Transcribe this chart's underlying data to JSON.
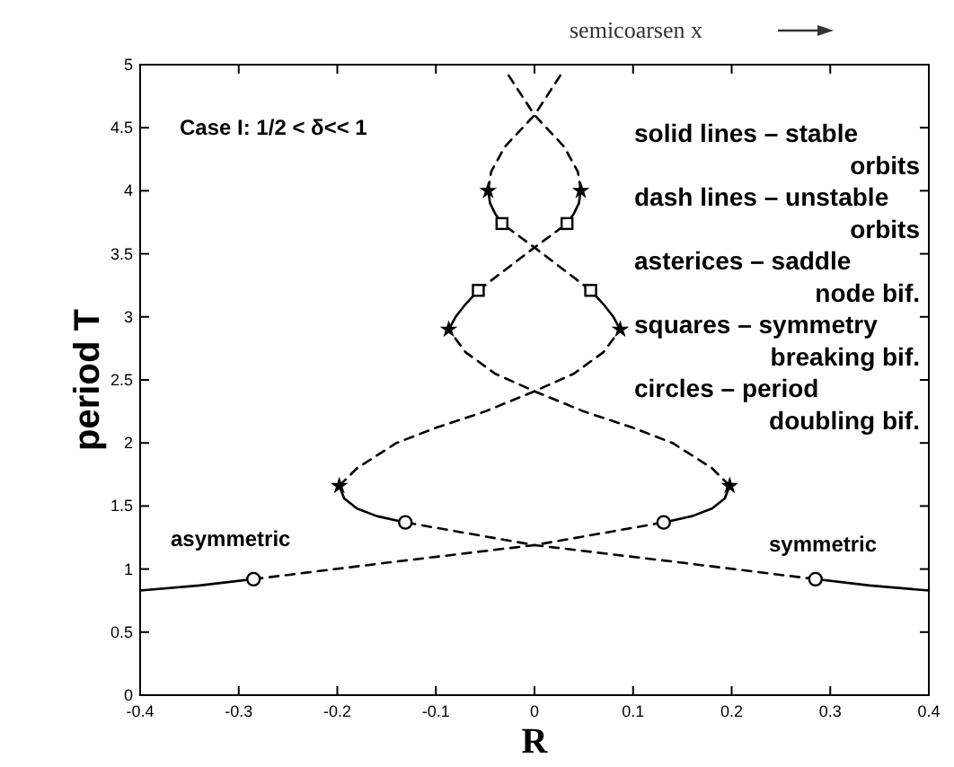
{
  "chart_data": {
    "type": "line",
    "xlabel": "R",
    "ylabel": "period T",
    "xlim": [
      -0.4,
      0.4
    ],
    "ylim": [
      0,
      5
    ],
    "xticks": [
      -0.4,
      -0.3,
      -0.2,
      -0.1,
      0,
      0.1,
      0.2,
      0.3,
      0.4
    ],
    "yticks": [
      0,
      0.5,
      1,
      1.5,
      2,
      2.5,
      3,
      3.5,
      4,
      4.5,
      5
    ],
    "grid": false,
    "annotations": [
      "semicoarsen x",
      "Case I: 1/2 < δ<< 1",
      "solid lines – stable\norbits",
      "dash lines – unstable\norbits",
      "asterices – saddle\nnode bif.",
      "squares – symmetry\nbreaking bif.",
      "circles – period\ndoubling bif.",
      "asymmetric",
      "symmetric"
    ],
    "series": [
      {
        "type": "line",
        "line_style": "solid",
        "color": "#000000",
        "x": [
          -0.4,
          -0.34,
          -0.285
        ],
        "values": [
          0.83,
          0.87,
          0.92
        ]
      },
      {
        "type": "line",
        "line_style": "dashed",
        "color": "#000000",
        "x": [
          -0.285,
          -0.15,
          0,
          0.131
        ],
        "values": [
          0.92,
          1.05,
          1.19,
          1.37
        ]
      },
      {
        "type": "line",
        "line_style": "solid",
        "color": "#000000",
        "x": [
          0.131,
          0.16,
          0.18,
          0.193,
          0.198
        ],
        "values": [
          1.37,
          1.42,
          1.48,
          1.56,
          1.66
        ]
      },
      {
        "type": "line",
        "line_style": "dashed",
        "color": "#000000",
        "x": [
          0.198,
          0.18,
          0.14,
          0.1,
          0.05,
          0,
          -0.04,
          -0.07,
          -0.087
        ],
        "values": [
          1.66,
          1.8,
          2.0,
          2.12,
          2.25,
          2.41,
          2.55,
          2.72,
          2.9
        ]
      },
      {
        "type": "line",
        "line_style": "solid",
        "color": "#000000",
        "x": [
          -0.087,
          -0.08,
          -0.07,
          -0.057
        ],
        "values": [
          2.9,
          3.0,
          3.1,
          3.21
        ]
      },
      {
        "type": "line",
        "line_style": "dashed",
        "color": "#000000",
        "x": [
          -0.057,
          0,
          0.033
        ],
        "values": [
          3.21,
          3.55,
          3.74
        ]
      },
      {
        "type": "line",
        "line_style": "solid",
        "color": "#000000",
        "x": [
          0.033,
          0.04,
          0.045,
          0.047
        ],
        "values": [
          3.74,
          3.82,
          3.9,
          4.0
        ]
      },
      {
        "type": "line",
        "line_style": "dashed",
        "color": "#000000",
        "x": [
          0.047,
          0.044,
          0.03,
          0,
          -0.03
        ],
        "values": [
          4.0,
          4.15,
          4.35,
          4.6,
          4.96
        ]
      },
      {
        "type": "line",
        "line_style": "solid",
        "color": "#000000",
        "x": [
          0.4,
          0.34,
          0.285
        ],
        "values": [
          0.83,
          0.87,
          0.92
        ]
      },
      {
        "type": "line",
        "line_style": "dashed",
        "color": "#000000",
        "x": [
          0.285,
          0.15,
          0,
          -0.131
        ],
        "values": [
          0.92,
          1.05,
          1.19,
          1.37
        ]
      },
      {
        "type": "line",
        "line_style": "solid",
        "color": "#000000",
        "x": [
          -0.131,
          -0.16,
          -0.18,
          -0.193,
          -0.198
        ],
        "values": [
          1.37,
          1.42,
          1.48,
          1.56,
          1.66
        ]
      },
      {
        "type": "line",
        "line_style": "dashed",
        "color": "#000000",
        "x": [
          -0.198,
          -0.18,
          -0.14,
          -0.1,
          -0.05,
          0,
          0.04,
          0.07,
          0.087
        ],
        "values": [
          1.66,
          1.8,
          2.0,
          2.12,
          2.25,
          2.41,
          2.55,
          2.72,
          2.9
        ]
      },
      {
        "type": "line",
        "line_style": "solid",
        "color": "#000000",
        "x": [
          0.087,
          0.08,
          0.07,
          0.057
        ],
        "values": [
          2.9,
          3.0,
          3.1,
          3.21
        ]
      },
      {
        "type": "line",
        "line_style": "dashed",
        "color": "#000000",
        "x": [
          0.057,
          0,
          -0.033
        ],
        "values": [
          3.21,
          3.55,
          3.74
        ]
      },
      {
        "type": "line",
        "line_style": "solid",
        "color": "#000000",
        "x": [
          -0.033,
          -0.04,
          -0.045,
          -0.047
        ],
        "values": [
          3.74,
          3.82,
          3.9,
          4.0
        ]
      },
      {
        "type": "line",
        "line_style": "dashed",
        "color": "#000000",
        "x": [
          -0.047,
          -0.044,
          -0.03,
          0,
          0.03
        ],
        "values": [
          4.0,
          4.15,
          4.35,
          4.6,
          4.96
        ]
      },
      {
        "type": "scatter",
        "marker": "circle",
        "color": "#000000",
        "x": [
          -0.285,
          0.285,
          -0.131,
          0.131
        ],
        "values": [
          0.92,
          0.92,
          1.37,
          1.37
        ]
      },
      {
        "type": "scatter",
        "marker": "star",
        "color": "#000000",
        "x": [
          -0.198,
          0.198,
          -0.087,
          0.087,
          -0.047,
          0.047
        ],
        "values": [
          1.66,
          1.66,
          2.9,
          2.9,
          4.0,
          4.0
        ]
      },
      {
        "type": "scatter",
        "marker": "square",
        "color": "#000000",
        "x": [
          -0.057,
          0.057,
          -0.033,
          0.033
        ],
        "values": [
          3.21,
          3.21,
          3.74,
          3.74
        ]
      }
    ]
  }
}
